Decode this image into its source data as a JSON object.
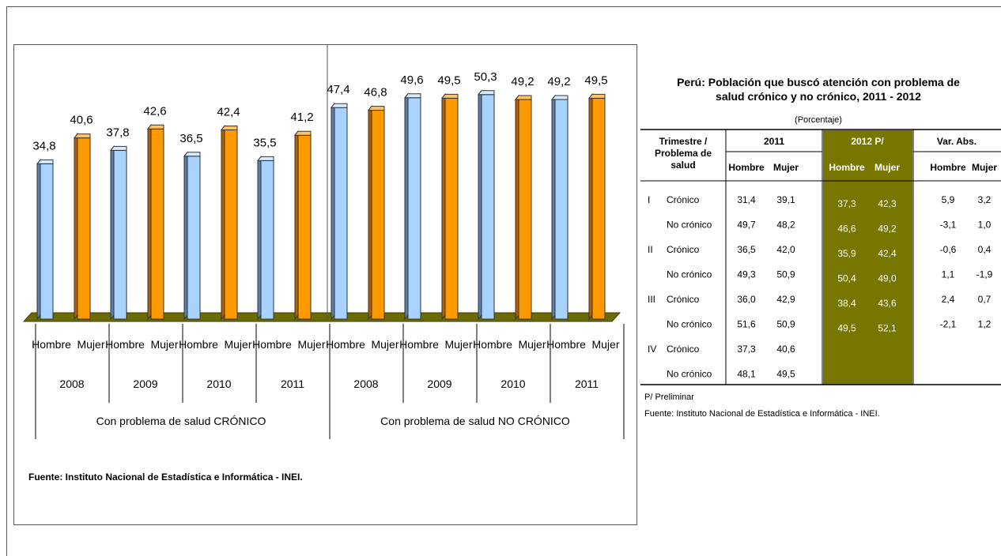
{
  "chart_data": {
    "type": "bar",
    "groups": [
      {
        "name": "Con problema de salud CRÓNICO",
        "years": [
          {
            "year": "2008",
            "values": [
              34.8,
              40.6
            ]
          },
          {
            "year": "2009",
            "values": [
              37.8,
              42.6
            ]
          },
          {
            "year": "2010",
            "values": [
              36.5,
              42.4
            ]
          },
          {
            "year": "2011",
            "values": [
              35.5,
              41.2
            ]
          }
        ]
      },
      {
        "name": "Con problema de salud NO CRÓNICO",
        "years": [
          {
            "year": "2008",
            "values": [
              47.4,
              46.8
            ]
          },
          {
            "year": "2009",
            "values": [
              49.6,
              49.5
            ]
          },
          {
            "year": "2010",
            "values": [
              50.3,
              49.2
            ]
          },
          {
            "year": "2011",
            "values": [
              49.2,
              49.5
            ]
          }
        ]
      }
    ],
    "sex_labels": [
      "Hombre",
      "Mujer"
    ],
    "series_colors": [
      "#a9d3ff",
      "#ff9900"
    ],
    "floor_color": "#6b6b00",
    "ylim": [
      0,
      55
    ],
    "source": "Fuente: Instituto Nacional de Estadística e Informática - INEI."
  },
  "table": {
    "title_line1": "Perú: Población que buscó atención con problema de",
    "title_line2": "salud crónico y no crónico, 2011 - 2012",
    "unit": "(Porcentaje)",
    "header": {
      "col1": [
        "Trimestre /",
        "Problema de",
        "salud"
      ],
      "year1": "2011",
      "year2": "2012 P/",
      "var": "Var. Abs.",
      "hombre": "Hombre",
      "mujer": "Mujer"
    },
    "highlight_color": "#777700",
    "rows": [
      {
        "q": "I",
        "type": "Crónico",
        "v2011": [
          "31,4",
          "39,1"
        ],
        "v2012": [
          "37,3",
          "42,3"
        ],
        "var": [
          "5,9",
          "3,2"
        ]
      },
      {
        "q": "",
        "type": "No crónico",
        "v2011": [
          "49,7",
          "48,2"
        ],
        "v2012": [
          "46,6",
          "49,2"
        ],
        "var": [
          "-3,1",
          "1,0"
        ]
      },
      {
        "q": "II",
        "type": "Crónico",
        "v2011": [
          "36,5",
          "42,0"
        ],
        "v2012": [
          "35,9",
          "42,4"
        ],
        "var": [
          "-0,6",
          "0,4"
        ]
      },
      {
        "q": "",
        "type": "No crónico",
        "v2011": [
          "49,3",
          "50,9"
        ],
        "v2012": [
          "50,4",
          "49,0"
        ],
        "var": [
          "1,1",
          "-1,9"
        ]
      },
      {
        "q": "III",
        "type": "Crónico",
        "v2011": [
          "36,0",
          "42,9"
        ],
        "v2012": [
          "38,4",
          "43,6"
        ],
        "var": [
          "2,4",
          "0,7"
        ]
      },
      {
        "q": "",
        "type": "No crónico",
        "v2011": [
          "51,6",
          "50,9"
        ],
        "v2012": [
          "49,5",
          "52,1"
        ],
        "var": [
          "-2,1",
          "1,2"
        ]
      },
      {
        "q": "IV",
        "type": "Crónico",
        "v2011": [
          "37,3",
          "40,6"
        ],
        "v2012": [
          "",
          ""
        ],
        "var": [
          "",
          ""
        ]
      },
      {
        "q": "",
        "type": "No crónico",
        "v2011": [
          "48,1",
          "49,5"
        ],
        "v2012": [
          "",
          ""
        ],
        "var": [
          "",
          ""
        ]
      }
    ],
    "note": "P/ Preliminar",
    "source": "Fuente: Instituto Nacional de Estadística e Informática - INEI."
  }
}
